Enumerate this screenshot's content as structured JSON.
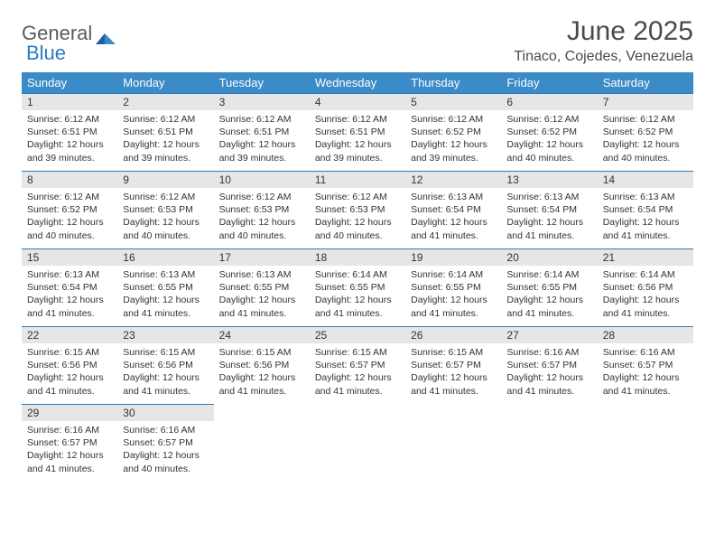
{
  "logo": {
    "word1": "General",
    "word2": "Blue"
  },
  "title": "June 2025",
  "location": "Tinaco, Cojedes, Venezuela",
  "colors": {
    "header_bg": "#3b8bc8",
    "header_fg": "#ffffff",
    "daynum_bg": "#e6e6e6",
    "rule": "#2d7bc0",
    "text": "#333333",
    "logo_gray": "#5a5a5a",
    "logo_blue": "#2d7bc0"
  },
  "weekdays": [
    "Sunday",
    "Monday",
    "Tuesday",
    "Wednesday",
    "Thursday",
    "Friday",
    "Saturday"
  ],
  "labels": {
    "sunrise": "Sunrise:",
    "sunset": "Sunset:",
    "daylight": "Daylight:"
  },
  "weeks": [
    [
      {
        "num": "1",
        "sunrise": "6:12 AM",
        "sunset": "6:51 PM",
        "daylight": "12 hours and 39 minutes."
      },
      {
        "num": "2",
        "sunrise": "6:12 AM",
        "sunset": "6:51 PM",
        "daylight": "12 hours and 39 minutes."
      },
      {
        "num": "3",
        "sunrise": "6:12 AM",
        "sunset": "6:51 PM",
        "daylight": "12 hours and 39 minutes."
      },
      {
        "num": "4",
        "sunrise": "6:12 AM",
        "sunset": "6:51 PM",
        "daylight": "12 hours and 39 minutes."
      },
      {
        "num": "5",
        "sunrise": "6:12 AM",
        "sunset": "6:52 PM",
        "daylight": "12 hours and 39 minutes."
      },
      {
        "num": "6",
        "sunrise": "6:12 AM",
        "sunset": "6:52 PM",
        "daylight": "12 hours and 40 minutes."
      },
      {
        "num": "7",
        "sunrise": "6:12 AM",
        "sunset": "6:52 PM",
        "daylight": "12 hours and 40 minutes."
      }
    ],
    [
      {
        "num": "8",
        "sunrise": "6:12 AM",
        "sunset": "6:52 PM",
        "daylight": "12 hours and 40 minutes."
      },
      {
        "num": "9",
        "sunrise": "6:12 AM",
        "sunset": "6:53 PM",
        "daylight": "12 hours and 40 minutes."
      },
      {
        "num": "10",
        "sunrise": "6:12 AM",
        "sunset": "6:53 PM",
        "daylight": "12 hours and 40 minutes."
      },
      {
        "num": "11",
        "sunrise": "6:12 AM",
        "sunset": "6:53 PM",
        "daylight": "12 hours and 40 minutes."
      },
      {
        "num": "12",
        "sunrise": "6:13 AM",
        "sunset": "6:54 PM",
        "daylight": "12 hours and 41 minutes."
      },
      {
        "num": "13",
        "sunrise": "6:13 AM",
        "sunset": "6:54 PM",
        "daylight": "12 hours and 41 minutes."
      },
      {
        "num": "14",
        "sunrise": "6:13 AM",
        "sunset": "6:54 PM",
        "daylight": "12 hours and 41 minutes."
      }
    ],
    [
      {
        "num": "15",
        "sunrise": "6:13 AM",
        "sunset": "6:54 PM",
        "daylight": "12 hours and 41 minutes."
      },
      {
        "num": "16",
        "sunrise": "6:13 AM",
        "sunset": "6:55 PM",
        "daylight": "12 hours and 41 minutes."
      },
      {
        "num": "17",
        "sunrise": "6:13 AM",
        "sunset": "6:55 PM",
        "daylight": "12 hours and 41 minutes."
      },
      {
        "num": "18",
        "sunrise": "6:14 AM",
        "sunset": "6:55 PM",
        "daylight": "12 hours and 41 minutes."
      },
      {
        "num": "19",
        "sunrise": "6:14 AM",
        "sunset": "6:55 PM",
        "daylight": "12 hours and 41 minutes."
      },
      {
        "num": "20",
        "sunrise": "6:14 AM",
        "sunset": "6:55 PM",
        "daylight": "12 hours and 41 minutes."
      },
      {
        "num": "21",
        "sunrise": "6:14 AM",
        "sunset": "6:56 PM",
        "daylight": "12 hours and 41 minutes."
      }
    ],
    [
      {
        "num": "22",
        "sunrise": "6:15 AM",
        "sunset": "6:56 PM",
        "daylight": "12 hours and 41 minutes."
      },
      {
        "num": "23",
        "sunrise": "6:15 AM",
        "sunset": "6:56 PM",
        "daylight": "12 hours and 41 minutes."
      },
      {
        "num": "24",
        "sunrise": "6:15 AM",
        "sunset": "6:56 PM",
        "daylight": "12 hours and 41 minutes."
      },
      {
        "num": "25",
        "sunrise": "6:15 AM",
        "sunset": "6:57 PM",
        "daylight": "12 hours and 41 minutes."
      },
      {
        "num": "26",
        "sunrise": "6:15 AM",
        "sunset": "6:57 PM",
        "daylight": "12 hours and 41 minutes."
      },
      {
        "num": "27",
        "sunrise": "6:16 AM",
        "sunset": "6:57 PM",
        "daylight": "12 hours and 41 minutes."
      },
      {
        "num": "28",
        "sunrise": "6:16 AM",
        "sunset": "6:57 PM",
        "daylight": "12 hours and 41 minutes."
      }
    ],
    [
      {
        "num": "29",
        "sunrise": "6:16 AM",
        "sunset": "6:57 PM",
        "daylight": "12 hours and 41 minutes."
      },
      {
        "num": "30",
        "sunrise": "6:16 AM",
        "sunset": "6:57 PM",
        "daylight": "12 hours and 40 minutes."
      },
      null,
      null,
      null,
      null,
      null
    ]
  ]
}
